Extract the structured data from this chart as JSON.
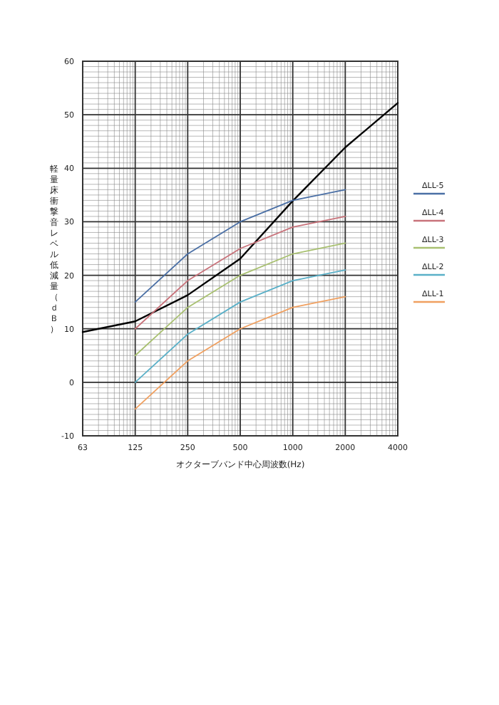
{
  "chart_data": {
    "type": "line",
    "xlabel": "オクターブバンド中心周波数(Hz)",
    "ylabel": "軽量床衝撃音レベル低減量（ｄＢ）",
    "categories": [
      "63",
      "125",
      "250",
      "500",
      "1000",
      "2000",
      "4000"
    ],
    "ylim": [
      -10,
      60
    ],
    "yticks": [
      -10,
      0,
      10,
      20,
      30,
      40,
      50,
      60
    ],
    "grid": true,
    "legend": "right",
    "marker": "none",
    "line_style": "solid",
    "series": [
      {
        "color": "#000000",
        "values": [
          9.4,
          11.4,
          16.3,
          23.1,
          33.9,
          43.9,
          52.2
        ]
      },
      {
        "name": "ΔLL-5",
        "color": "#4a6fa5",
        "values": [
          null,
          15,
          24,
          30,
          34,
          36,
          null
        ]
      },
      {
        "name": "ΔLL-4",
        "color": "#c8727a",
        "values": [
          null,
          10,
          19,
          25,
          29,
          31,
          null
        ]
      },
      {
        "name": "ΔLL-3",
        "color": "#a8c070",
        "values": [
          null,
          5,
          14,
          20,
          24,
          26,
          null
        ]
      },
      {
        "name": "ΔLL-2",
        "color": "#5ab0c8",
        "values": [
          null,
          0,
          9,
          15,
          19,
          21,
          null
        ]
      },
      {
        "name": "ΔLL-1",
        "color": "#f0a060",
        "values": [
          null,
          -5,
          4,
          10,
          14,
          16,
          null
        ]
      }
    ]
  }
}
